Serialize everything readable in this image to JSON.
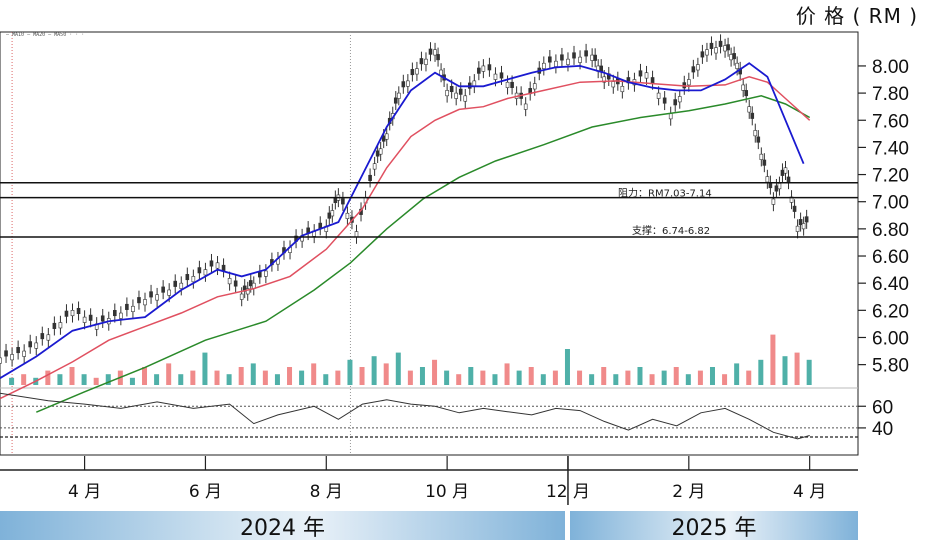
{
  "unit_label": "价 格 ( RM )",
  "years": {
    "left": "2024 年",
    "right": "2025 年"
  },
  "legend_text": "— MA10  — MA20  — MA50 · · ·",
  "colors": {
    "ma_short": "#1a1ad0",
    "ma_mid": "#e05060",
    "ma_long": "#2a8a2a",
    "vol_up": "#4fb0a8",
    "vol_down": "#f08a8a",
    "rsi": "#333333"
  },
  "chart_data": {
    "type": "candlestick",
    "y_ticks": [
      "8.00",
      "7.80",
      "7.60",
      "7.40",
      "7.20",
      "7.00",
      "6.80",
      "6.60",
      "6.40",
      "6.20",
      "6.00",
      "5.80"
    ],
    "y_tick_values": [
      8.0,
      7.8,
      7.6,
      7.4,
      7.2,
      7.0,
      6.8,
      6.6,
      6.4,
      6.2,
      6.0,
      5.8
    ],
    "ylim": [
      5.65,
      8.25
    ],
    "x_ticks": [
      "4 月",
      "6 月",
      "8 月",
      "10 月",
      "12 月",
      "2 月",
      "4 月"
    ],
    "x_tick_values": [
      3.0,
      5.0,
      7.0,
      9.0,
      11.0,
      13.0,
      15.0
    ],
    "xlim": [
      1.6,
      15.8
    ],
    "rsi_ticks": [
      "60",
      "40"
    ],
    "rsi_tick_values": [
      60,
      40
    ],
    "rsi_lim": [
      15,
      75
    ],
    "annotations": [
      {
        "text": "阻力：RM7.03-7.14",
        "levels": [
          7.03,
          7.14
        ]
      },
      {
        "text": "支撑：6.74-6.82",
        "levels": [
          6.74
        ]
      }
    ],
    "ma_short": [
      [
        1.6,
        5.7
      ],
      [
        2.2,
        5.86
      ],
      [
        2.8,
        6.05
      ],
      [
        3.4,
        6.12
      ],
      [
        4.0,
        6.15
      ],
      [
        4.6,
        6.35
      ],
      [
        5.2,
        6.5
      ],
      [
        5.6,
        6.45
      ],
      [
        6.0,
        6.5
      ],
      [
        6.6,
        6.75
      ],
      [
        7.2,
        6.85
      ],
      [
        7.6,
        7.2
      ],
      [
        8.0,
        7.55
      ],
      [
        8.4,
        7.82
      ],
      [
        8.8,
        7.95
      ],
      [
        9.2,
        7.85
      ],
      [
        9.6,
        7.85
      ],
      [
        10.0,
        7.9
      ],
      [
        10.4,
        7.95
      ],
      [
        10.8,
        7.99
      ],
      [
        11.2,
        8.0
      ],
      [
        11.6,
        7.95
      ],
      [
        12.0,
        7.88
      ],
      [
        12.4,
        7.84
      ],
      [
        12.8,
        7.82
      ],
      [
        13.2,
        7.82
      ],
      [
        13.6,
        7.9
      ],
      [
        14.0,
        8.02
      ],
      [
        14.3,
        7.92
      ],
      [
        14.6,
        7.6
      ],
      [
        14.9,
        7.28
      ]
    ],
    "ma_mid": [
      [
        1.6,
        5.55
      ],
      [
        2.2,
        5.68
      ],
      [
        2.8,
        5.82
      ],
      [
        3.4,
        5.98
      ],
      [
        4.0,
        6.08
      ],
      [
        4.6,
        6.18
      ],
      [
        5.2,
        6.3
      ],
      [
        5.8,
        6.36
      ],
      [
        6.4,
        6.45
      ],
      [
        7.0,
        6.65
      ],
      [
        7.6,
        6.95
      ],
      [
        8.0,
        7.25
      ],
      [
        8.4,
        7.48
      ],
      [
        8.8,
        7.6
      ],
      [
        9.2,
        7.68
      ],
      [
        9.6,
        7.7
      ],
      [
        10.0,
        7.76
      ],
      [
        10.6,
        7.82
      ],
      [
        11.2,
        7.88
      ],
      [
        11.8,
        7.89
      ],
      [
        12.4,
        7.87
      ],
      [
        13.0,
        7.85
      ],
      [
        13.6,
        7.86
      ],
      [
        14.0,
        7.92
      ],
      [
        14.3,
        7.88
      ],
      [
        14.6,
        7.76
      ],
      [
        15.0,
        7.6
      ]
    ],
    "ma_long": [
      [
        2.2,
        5.45
      ],
      [
        3.0,
        5.6
      ],
      [
        4.0,
        5.78
      ],
      [
        5.0,
        5.98
      ],
      [
        6.0,
        6.12
      ],
      [
        6.8,
        6.35
      ],
      [
        7.4,
        6.55
      ],
      [
        8.0,
        6.8
      ],
      [
        8.6,
        7.02
      ],
      [
        9.2,
        7.18
      ],
      [
        9.8,
        7.3
      ],
      [
        10.6,
        7.42
      ],
      [
        11.4,
        7.55
      ],
      [
        12.2,
        7.62
      ],
      [
        13.0,
        7.67
      ],
      [
        13.6,
        7.72
      ],
      [
        14.2,
        7.78
      ],
      [
        14.6,
        7.72
      ],
      [
        15.0,
        7.62
      ]
    ],
    "close_path": [
      [
        1.6,
        5.85
      ],
      [
        2.0,
        5.9
      ],
      [
        2.4,
        6.02
      ],
      [
        2.8,
        6.2
      ],
      [
        3.2,
        6.1
      ],
      [
        3.6,
        6.18
      ],
      [
        4.0,
        6.28
      ],
      [
        4.4,
        6.35
      ],
      [
        4.8,
        6.45
      ],
      [
        5.2,
        6.55
      ],
      [
        5.6,
        6.32
      ],
      [
        5.8,
        6.4
      ],
      [
        6.2,
        6.58
      ],
      [
        6.6,
        6.75
      ],
      [
        7.0,
        6.82
      ],
      [
        7.2,
        7.05
      ],
      [
        7.5,
        6.78
      ],
      [
        7.8,
        7.28
      ],
      [
        8.0,
        7.5
      ],
      [
        8.2,
        7.8
      ],
      [
        8.5,
        7.98
      ],
      [
        8.8,
        8.12
      ],
      [
        9.0,
        7.82
      ],
      [
        9.3,
        7.78
      ],
      [
        9.6,
        8.0
      ],
      [
        10.0,
        7.88
      ],
      [
        10.3,
        7.72
      ],
      [
        10.6,
        8.02
      ],
      [
        11.0,
        8.05
      ],
      [
        11.4,
        8.08
      ],
      [
        11.6,
        7.92
      ],
      [
        11.9,
        7.85
      ],
      [
        12.3,
        7.95
      ],
      [
        12.7,
        7.65
      ],
      [
        13.0,
        7.9
      ],
      [
        13.3,
        8.12
      ],
      [
        13.6,
        8.15
      ],
      [
        13.8,
        8.02
      ],
      [
        14.0,
        7.7
      ],
      [
        14.2,
        7.35
      ],
      [
        14.4,
        7.02
      ],
      [
        14.6,
        7.25
      ],
      [
        14.8,
        6.82
      ],
      [
        15.0,
        6.86
      ]
    ],
    "rsi_path": [
      [
        1.6,
        72
      ],
      [
        2.4,
        65
      ],
      [
        3.0,
        62
      ],
      [
        3.6,
        58
      ],
      [
        4.2,
        64
      ],
      [
        4.8,
        58
      ],
      [
        5.4,
        62
      ],
      [
        5.8,
        44
      ],
      [
        6.2,
        52
      ],
      [
        6.8,
        60
      ],
      [
        7.2,
        48
      ],
      [
        7.6,
        62
      ],
      [
        8.0,
        66
      ],
      [
        8.4,
        62
      ],
      [
        8.8,
        60
      ],
      [
        9.2,
        54
      ],
      [
        9.6,
        58
      ],
      [
        10.0,
        55
      ],
      [
        10.4,
        52
      ],
      [
        10.8,
        58
      ],
      [
        11.2,
        56
      ],
      [
        11.6,
        46
      ],
      [
        12.0,
        38
      ],
      [
        12.4,
        48
      ],
      [
        12.8,
        42
      ],
      [
        13.2,
        54
      ],
      [
        13.6,
        58
      ],
      [
        14.0,
        48
      ],
      [
        14.4,
        36
      ],
      [
        14.8,
        30
      ],
      [
        15.0,
        33
      ]
    ],
    "volume": [
      [
        1.8,
        2,
        "u"
      ],
      [
        2.0,
        3,
        "d"
      ],
      [
        2.2,
        2,
        "u"
      ],
      [
        2.4,
        4,
        "d"
      ],
      [
        2.6,
        3,
        "u"
      ],
      [
        2.8,
        5,
        "d"
      ],
      [
        3.0,
        3,
        "u"
      ],
      [
        3.2,
        2,
        "d"
      ],
      [
        3.4,
        3,
        "u"
      ],
      [
        3.6,
        4,
        "d"
      ],
      [
        3.8,
        2,
        "u"
      ],
      [
        4.0,
        5,
        "d"
      ],
      [
        4.2,
        3,
        "u"
      ],
      [
        4.4,
        6,
        "d"
      ],
      [
        4.6,
        3,
        "u"
      ],
      [
        4.8,
        4,
        "d"
      ],
      [
        5.0,
        9,
        "u"
      ],
      [
        5.2,
        4,
        "d"
      ],
      [
        5.4,
        3,
        "u"
      ],
      [
        5.6,
        5,
        "d"
      ],
      [
        5.8,
        6,
        "u"
      ],
      [
        6.0,
        4,
        "d"
      ],
      [
        6.2,
        3,
        "u"
      ],
      [
        6.4,
        5,
        "d"
      ],
      [
        6.6,
        4,
        "u"
      ],
      [
        6.8,
        6,
        "d"
      ],
      [
        7.0,
        3,
        "u"
      ],
      [
        7.2,
        4,
        "d"
      ],
      [
        7.4,
        7,
        "u"
      ],
      [
        7.6,
        5,
        "d"
      ],
      [
        7.8,
        8,
        "u"
      ],
      [
        8.0,
        6,
        "d"
      ],
      [
        8.2,
        9,
        "u"
      ],
      [
        8.4,
        4,
        "d"
      ],
      [
        8.6,
        5,
        "u"
      ],
      [
        8.8,
        7,
        "d"
      ],
      [
        9.0,
        4,
        "u"
      ],
      [
        9.2,
        3,
        "d"
      ],
      [
        9.4,
        5,
        "u"
      ],
      [
        9.6,
        4,
        "d"
      ],
      [
        9.8,
        3,
        "u"
      ],
      [
        10.0,
        6,
        "d"
      ],
      [
        10.2,
        4,
        "u"
      ],
      [
        10.4,
        5,
        "d"
      ],
      [
        10.6,
        3,
        "u"
      ],
      [
        10.8,
        4,
        "d"
      ],
      [
        11.0,
        10,
        "u"
      ],
      [
        11.2,
        4,
        "d"
      ],
      [
        11.4,
        3,
        "u"
      ],
      [
        11.6,
        5,
        "d"
      ],
      [
        11.8,
        3,
        "u"
      ],
      [
        12.0,
        4,
        "d"
      ],
      [
        12.2,
        5,
        "u"
      ],
      [
        12.4,
        3,
        "d"
      ],
      [
        12.6,
        4,
        "u"
      ],
      [
        12.8,
        5,
        "d"
      ],
      [
        13.0,
        3,
        "u"
      ],
      [
        13.2,
        4,
        "d"
      ],
      [
        13.4,
        5,
        "u"
      ],
      [
        13.6,
        3,
        "d"
      ],
      [
        13.8,
        6,
        "u"
      ],
      [
        14.0,
        4,
        "d"
      ],
      [
        14.2,
        7,
        "u"
      ],
      [
        14.4,
        14,
        "d"
      ],
      [
        14.6,
        8,
        "u"
      ],
      [
        14.8,
        9,
        "d"
      ],
      [
        15.0,
        7,
        "u"
      ]
    ]
  }
}
